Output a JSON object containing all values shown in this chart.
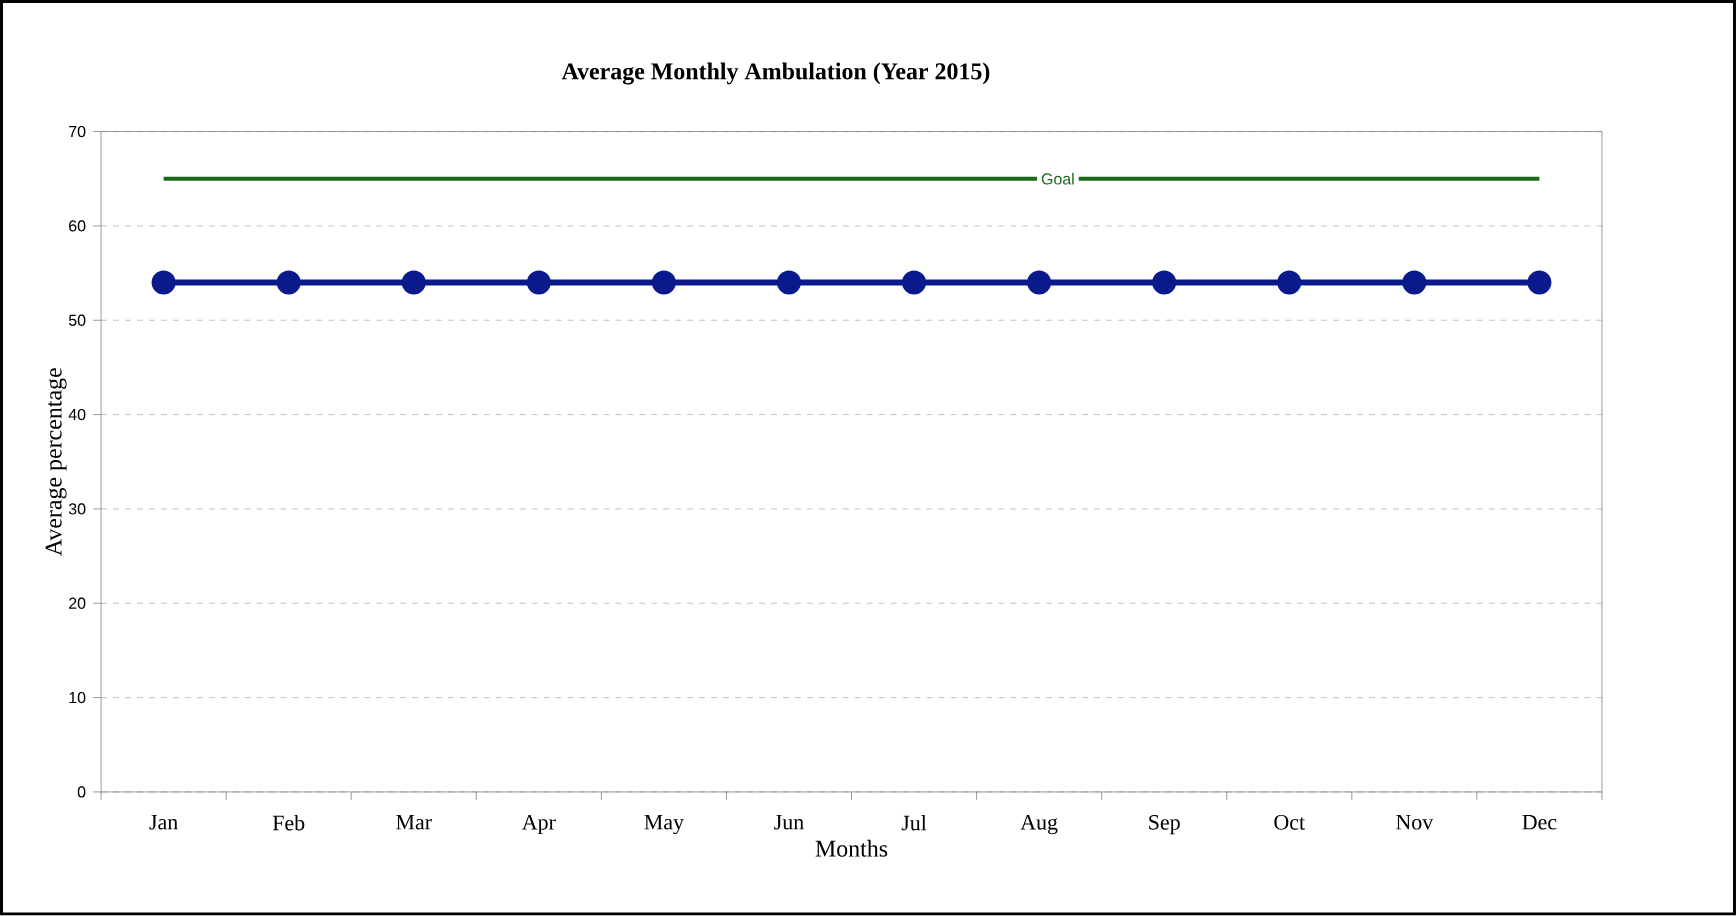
{
  "chart_data": {
    "type": "line",
    "title": "Average Monthly Ambulation (Year 2015)",
    "xlabel": "Months",
    "ylabel": "Average percentage",
    "categories": [
      "Jan",
      "Feb",
      "Mar",
      "Apr",
      "May",
      "Jun",
      "Jul",
      "Aug",
      "Sep",
      "Oct",
      "Nov",
      "Dec"
    ],
    "series": [
      {
        "color": "#0a1a8c",
        "values": [
          54,
          54,
          54,
          54,
          54,
          54,
          54,
          54,
          54,
          54,
          54,
          54
        ]
      }
    ],
    "ylim": [
      0,
      70
    ],
    "yticks": [
      0,
      10,
      20,
      30,
      40,
      50,
      60,
      70
    ],
    "ref_lines": [
      {
        "axis": "y",
        "value": 65,
        "label": "Goal",
        "color": "#1a6b1a"
      }
    ],
    "grid": "y",
    "marker": "circle",
    "line_style": "solid"
  }
}
